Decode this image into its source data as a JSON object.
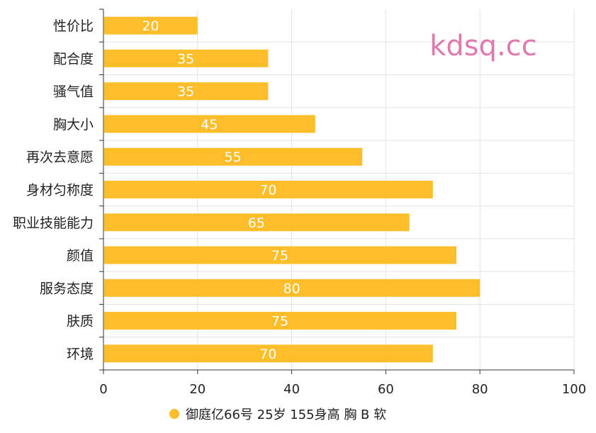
{
  "watermark": "kdsq.cc",
  "colors": {
    "bar": "#FDBE2A",
    "grid": "#E4E4E4",
    "axis": "#333333",
    "watermark": "#E07AAE"
  },
  "chart_data": {
    "type": "bar",
    "orientation": "horizontal",
    "categories": [
      "性价比",
      "配合度",
      "骚气值",
      "胸大小",
      "再次去意愿",
      "身材匀称度",
      "职业技能能力",
      "颜值",
      "服务态度",
      "肤质",
      "环境"
    ],
    "series": [
      {
        "name": "御庭亿66号 25岁  155身高  胸 B  软",
        "values": [
          20,
          35,
          35,
          45,
          55,
          70,
          65,
          75,
          80,
          75,
          70
        ]
      }
    ],
    "xlim": [
      0,
      100
    ],
    "xticks": [
      "0",
      "20",
      "40",
      "60",
      "80",
      "100"
    ],
    "grid": true,
    "legend_position": "bottom"
  }
}
